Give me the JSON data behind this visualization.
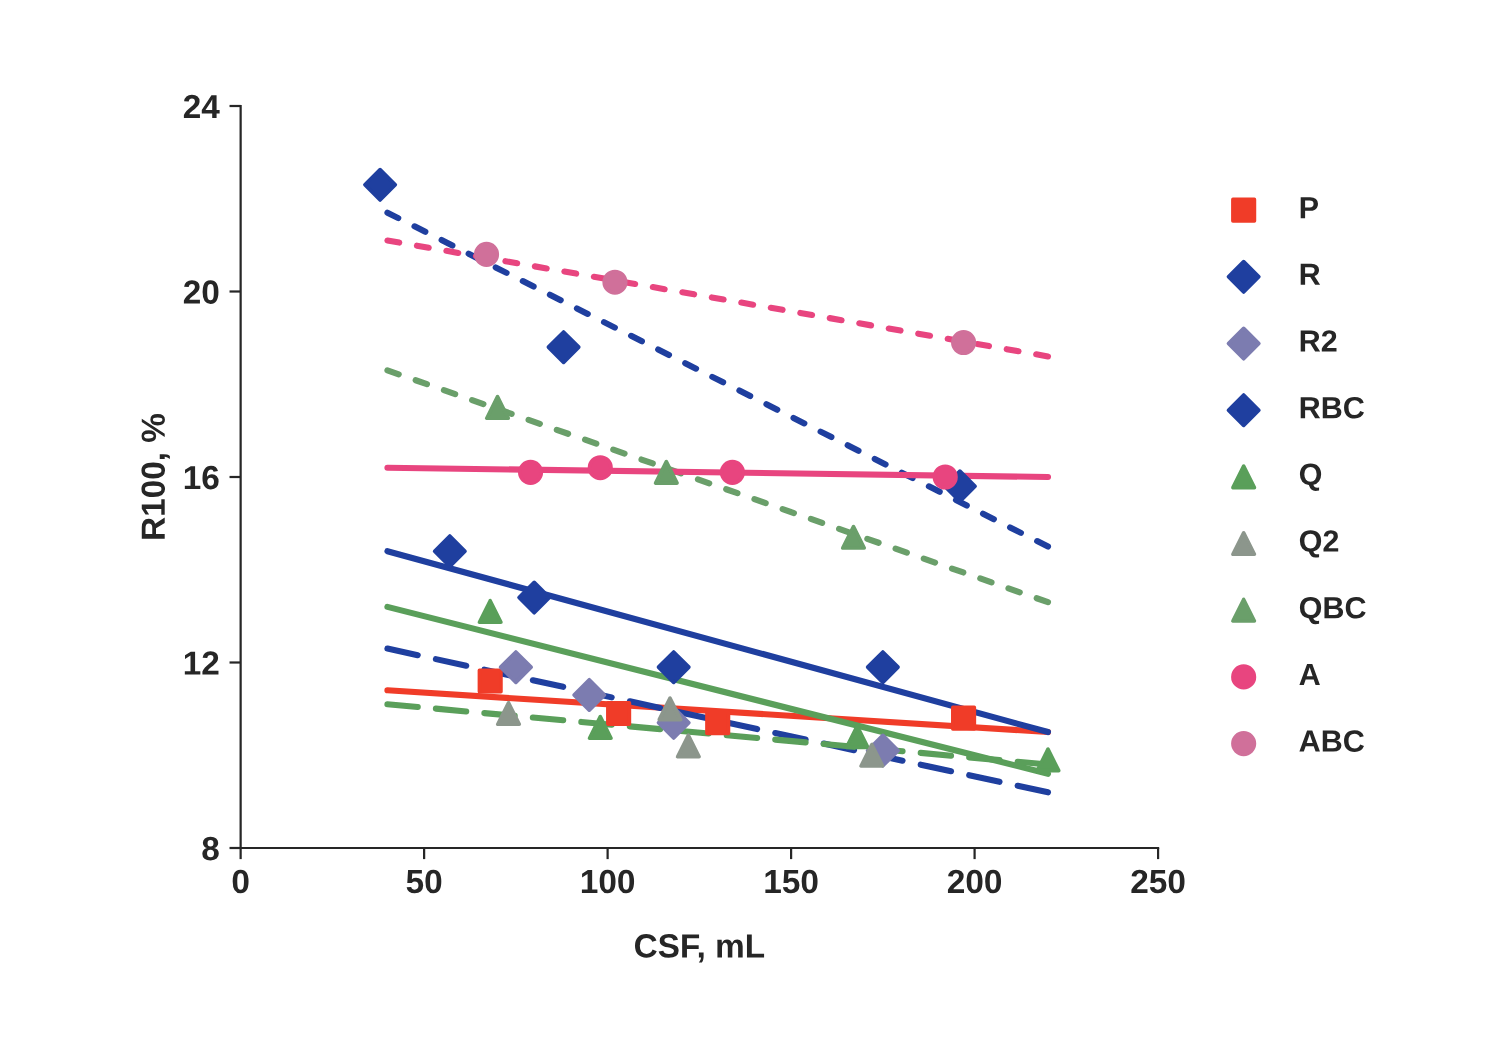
{
  "chart_data": {
    "type": "scatter",
    "xlabel": "CSF, mL",
    "ylabel": "R100, %",
    "xlim": [
      0,
      250
    ],
    "xticks": [
      0,
      50,
      100,
      150,
      200,
      250
    ],
    "ylim": [
      8,
      24
    ],
    "yticks": [
      8,
      12,
      16,
      20,
      24
    ],
    "grid": false,
    "legend": "right",
    "series": [
      {
        "name": "P",
        "color": "#f03c28",
        "marker": "square",
        "x": [
          68,
          103,
          130,
          197
        ],
        "values": [
          11.6,
          10.9,
          10.7,
          10.8
        ]
      },
      {
        "name": "R",
        "color": "#1f3f9f",
        "marker": "diamond",
        "x": [
          57,
          80,
          118,
          175
        ],
        "values": [
          14.4,
          13.4,
          11.9,
          11.9
        ]
      },
      {
        "name": "R2",
        "color": "#7c7cb0",
        "marker": "diamond",
        "x": [
          75,
          95,
          118,
          175
        ],
        "values": [
          11.9,
          11.3,
          10.7,
          10.1
        ]
      },
      {
        "name": "RBC",
        "color": "#1f3f9f",
        "marker": "diamond",
        "x": [
          38,
          88,
          196
        ],
        "values": [
          22.3,
          18.8,
          15.8
        ]
      },
      {
        "name": "Q",
        "color": "#5a9f5a",
        "marker": "triangle",
        "x": [
          68,
          98,
          168,
          220
        ],
        "values": [
          13.1,
          10.6,
          10.4,
          9.9
        ]
      },
      {
        "name": "Q2",
        "color": "#8c968c",
        "marker": "triangle",
        "x": [
          73,
          117,
          122,
          172
        ],
        "values": [
          10.9,
          11.0,
          10.2,
          10.0
        ]
      },
      {
        "name": "QBC",
        "color": "#6a9f6a",
        "marker": "triangle",
        "x": [
          70,
          116,
          167
        ],
        "values": [
          17.5,
          16.1,
          14.7
        ]
      },
      {
        "name": "A",
        "color": "#e8457f",
        "marker": "circle",
        "x": [
          79,
          98,
          134,
          192
        ],
        "values": [
          16.1,
          16.2,
          16.1,
          16.0
        ]
      },
      {
        "name": "ABC",
        "color": "#d0709a",
        "marker": "circle",
        "x": [
          67,
          102,
          197
        ],
        "values": [
          20.8,
          20.2,
          18.9
        ]
      },
      {
        "type": "line",
        "color": "#f03c28",
        "line_style": "solid",
        "x": [
          40,
          220
        ],
        "values": [
          11.4,
          10.5
        ]
      },
      {
        "type": "line",
        "color": "#1f3f9f",
        "line_style": "solid",
        "x": [
          40,
          220
        ],
        "values": [
          14.4,
          10.5
        ]
      },
      {
        "type": "line",
        "color": "#1f3f9f",
        "line_style": "dashed",
        "x": [
          40,
          220
        ],
        "values": [
          12.3,
          9.2
        ]
      },
      {
        "type": "line",
        "color": "#1f3f9f",
        "line_style": "dotted",
        "x": [
          40,
          220
        ],
        "values": [
          21.7,
          14.5
        ]
      },
      {
        "type": "line",
        "color": "#5a9f5a",
        "line_style": "solid",
        "x": [
          40,
          220
        ],
        "values": [
          13.2,
          9.6
        ]
      },
      {
        "type": "line",
        "color": "#5a9f5a",
        "line_style": "dashed",
        "x": [
          40,
          220
        ],
        "values": [
          11.1,
          9.8
        ]
      },
      {
        "type": "line",
        "color": "#6a9f6a",
        "line_style": "dotted",
        "x": [
          40,
          220
        ],
        "values": [
          18.3,
          13.3
        ]
      },
      {
        "type": "line",
        "color": "#e8457f",
        "line_style": "solid",
        "x": [
          40,
          220
        ],
        "values": [
          16.2,
          16.0
        ]
      },
      {
        "type": "line",
        "color": "#e8457f",
        "line_style": "dotted",
        "x": [
          40,
          220
        ],
        "values": [
          21.1,
          18.6
        ]
      }
    ]
  }
}
